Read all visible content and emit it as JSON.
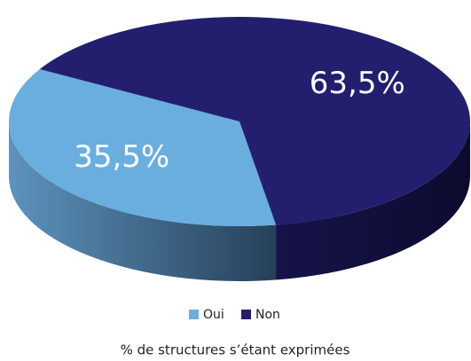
{
  "chart_data": {
    "type": "pie",
    "categories": [
      "Oui",
      "Non"
    ],
    "values": [
      35.5,
      63.5
    ],
    "value_labels": [
      "35,5%",
      "63,5%"
    ],
    "colors": [
      "#6aaee0",
      "#231f6e"
    ],
    "legend": "bottom",
    "caption": "% de structures s’étant exprimées"
  }
}
